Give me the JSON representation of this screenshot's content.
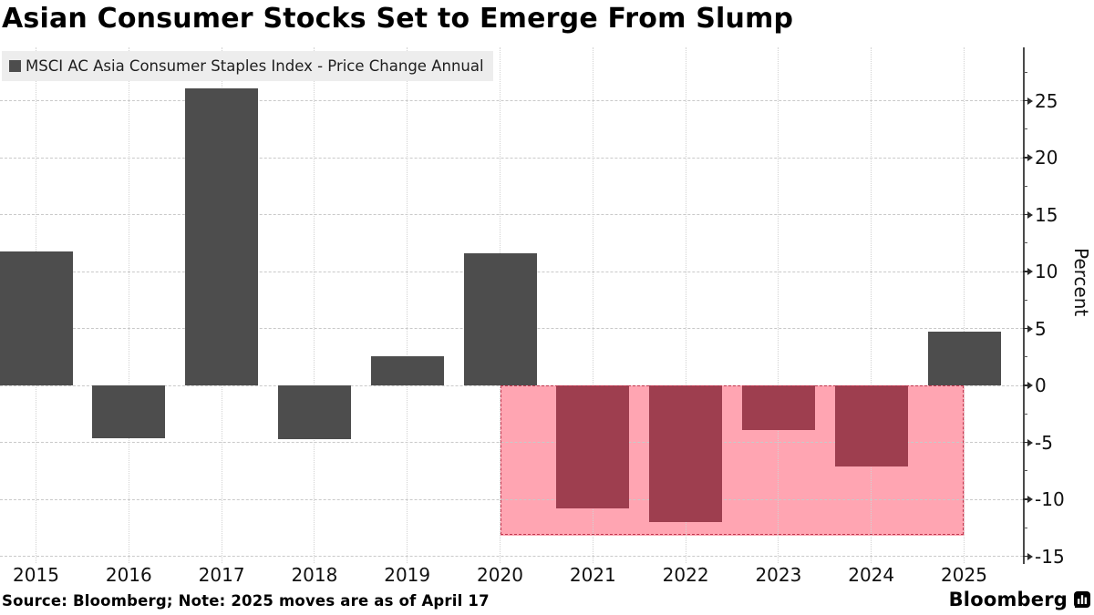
{
  "title": "Asian Consumer Stocks Set to Emerge From Slump",
  "legend": {
    "swatch_color": "#4d4d4d",
    "label": "MSCI AC Asia Consumer Staples Index - Price Change Annual"
  },
  "footer": {
    "source_note": "Source: Bloomberg; Note: 2025 moves are as of April 17",
    "brand": "Bloomberg",
    "brand_icon": "bar-chart-bubble-icon"
  },
  "chart_data": {
    "type": "bar",
    "title": "Asian Consumer Stocks Set to Emerge From Slump",
    "series_name": "MSCI AC Asia Consumer Staples Index - Price Change Annual",
    "categories": [
      "2015",
      "2016",
      "2017",
      "2018",
      "2019",
      "2020",
      "2021",
      "2022",
      "2023",
      "2024",
      "2025"
    ],
    "values": [
      11.8,
      -4.6,
      26.1,
      -4.7,
      2.6,
      11.6,
      -10.8,
      -12.0,
      -3.9,
      -7.1,
      4.7
    ],
    "xlabel": "",
    "ylabel": "Percent",
    "ylabel_side": "right",
    "ylim": [
      -15.5,
      29.5
    ],
    "yticks_major": [
      -15,
      -10,
      -5,
      0,
      5,
      10,
      15,
      20,
      25
    ],
    "ytick_minor_step": 2.5,
    "grid": true,
    "legend_position": "top-left",
    "highlight_band": {
      "from_category": "2020",
      "to_category": "2025",
      "value_top": 0,
      "value_bottom": -13.2,
      "fill": "#ffa5b2",
      "border": "#c2374f"
    },
    "colors": {
      "bar": "#4d4d4d",
      "bar_negative_in_band": "#9e3e4f",
      "grid": "#c9c9c9",
      "axis": "#4a4a4a",
      "tick": "#2b2b2b",
      "label": "#111111"
    }
  }
}
